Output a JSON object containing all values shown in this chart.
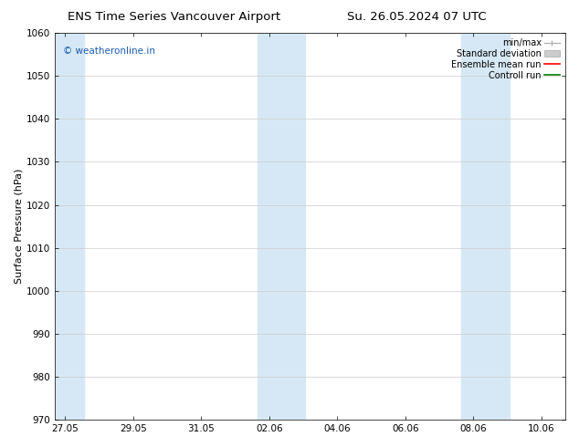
{
  "title_left": "ENS Time Series Vancouver Airport",
  "title_right": "Su. 26.05.2024 07 UTC",
  "ylabel": "Surface Pressure (hPa)",
  "ylim": [
    970,
    1060
  ],
  "yticks": [
    970,
    980,
    990,
    1000,
    1010,
    1020,
    1030,
    1040,
    1050,
    1060
  ],
  "x_tick_labels": [
    "27.05",
    "29.05",
    "31.05",
    "02.06",
    "04.06",
    "06.06",
    "08.06",
    "10.06"
  ],
  "x_tick_positions": [
    0,
    2,
    4,
    6,
    8,
    10,
    12,
    14
  ],
  "xlim": [
    -0.3,
    14.7
  ],
  "shaded_bands": [
    {
      "x_start": -0.3,
      "x_end": 0.55
    },
    {
      "x_start": 5.65,
      "x_end": 7.05
    },
    {
      "x_start": 11.65,
      "x_end": 13.05
    }
  ],
  "shade_color": "#d6e8f5",
  "watermark_text": "© weatheronline.in",
  "watermark_color": "#1a5cb0",
  "legend_labels": [
    "min/max",
    "Standard deviation",
    "Ensemble mean run",
    "Controll run"
  ],
  "legend_colors": [
    "#aaaaaa",
    "#cccccc",
    "#ff0000",
    "#008000"
  ],
  "background_color": "#ffffff",
  "plot_bg_color": "#ffffff",
  "title_fontsize": 9.5,
  "axis_fontsize": 8,
  "tick_fontsize": 7.5,
  "legend_fontsize": 7,
  "watermark_fontsize": 7.5
}
